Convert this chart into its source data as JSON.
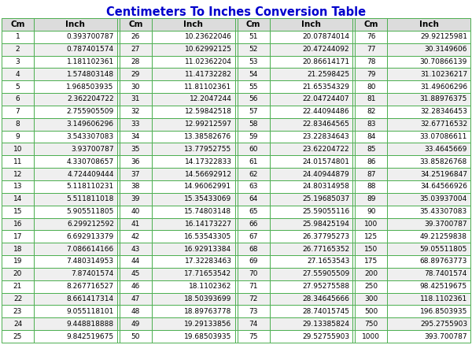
{
  "title": "Centimeters To Inches Conversion Table",
  "title_color": "#0000CC",
  "header_bg": "#DCDCDC",
  "odd_row_bg": "#FFFFFF",
  "even_row_bg": "#EFEFEF",
  "border_color": "#4CAF50",
  "separator_color": "#4CAF50",
  "col1_data": [
    [
      1,
      "0.393700787"
    ],
    [
      2,
      "0.787401574"
    ],
    [
      3,
      "1.181102361"
    ],
    [
      4,
      "1.574803148"
    ],
    [
      5,
      "1.968503935"
    ],
    [
      6,
      "2.362204722"
    ],
    [
      7,
      "2.755905509"
    ],
    [
      8,
      "3.149606296"
    ],
    [
      9,
      "3.543307083"
    ],
    [
      10,
      "3.93700787"
    ],
    [
      11,
      "4.330708657"
    ],
    [
      12,
      "4.724409444"
    ],
    [
      13,
      "5.118110231"
    ],
    [
      14,
      "5.511811018"
    ],
    [
      15,
      "5.905511805"
    ],
    [
      16,
      "6.299212592"
    ],
    [
      17,
      "6.692913379"
    ],
    [
      18,
      "7.086614166"
    ],
    [
      19,
      "7.480314953"
    ],
    [
      20,
      "7.87401574"
    ],
    [
      21,
      "8.267716527"
    ],
    [
      22,
      "8.661417314"
    ],
    [
      23,
      "9.055118101"
    ],
    [
      24,
      "9.448818888"
    ],
    [
      25,
      "9.842519675"
    ]
  ],
  "col2_data": [
    [
      26,
      "10.23622046"
    ],
    [
      27,
      "10.62992125"
    ],
    [
      28,
      "11.02362204"
    ],
    [
      29,
      "11.41732282"
    ],
    [
      30,
      "11.81102361"
    ],
    [
      31,
      "12.2047244"
    ],
    [
      32,
      "12.59842518"
    ],
    [
      33,
      "12.99212597"
    ],
    [
      34,
      "13.38582676"
    ],
    [
      35,
      "13.77952755"
    ],
    [
      36,
      "14.17322833"
    ],
    [
      37,
      "14.56692912"
    ],
    [
      38,
      "14.96062991"
    ],
    [
      39,
      "15.35433069"
    ],
    [
      40,
      "15.74803148"
    ],
    [
      41,
      "16.14173227"
    ],
    [
      42,
      "16.53543305"
    ],
    [
      43,
      "16.92913384"
    ],
    [
      44,
      "17.32283463"
    ],
    [
      45,
      "17.71653542"
    ],
    [
      46,
      "18.1102362"
    ],
    [
      47,
      "18.50393699"
    ],
    [
      48,
      "18.89763778"
    ],
    [
      49,
      "19.29133856"
    ],
    [
      50,
      "19.68503935"
    ]
  ],
  "col3_data": [
    [
      51,
      "20.07874014"
    ],
    [
      52,
      "20.47244092"
    ],
    [
      53,
      "20.86614171"
    ],
    [
      54,
      "21.2598425"
    ],
    [
      55,
      "21.65354329"
    ],
    [
      56,
      "22.04724407"
    ],
    [
      57,
      "22.44094486"
    ],
    [
      58,
      "22.83464565"
    ],
    [
      59,
      "23.22834643"
    ],
    [
      60,
      "23.62204722"
    ],
    [
      61,
      "24.01574801"
    ],
    [
      62,
      "24.40944879"
    ],
    [
      63,
      "24.80314958"
    ],
    [
      64,
      "25.19685037"
    ],
    [
      65,
      "25.59055116"
    ],
    [
      66,
      "25.98425194"
    ],
    [
      67,
      "26.37795273"
    ],
    [
      68,
      "26.77165352"
    ],
    [
      69,
      "27.1653543"
    ],
    [
      70,
      "27.55905509"
    ],
    [
      71,
      "27.95275588"
    ],
    [
      72,
      "28.34645666"
    ],
    [
      73,
      "28.74015745"
    ],
    [
      74,
      "29.13385824"
    ],
    [
      75,
      "29.52755903"
    ]
  ],
  "col4_data": [
    [
      76,
      "29.92125981"
    ],
    [
      77,
      "30.3149606"
    ],
    [
      78,
      "30.70866139"
    ],
    [
      79,
      "31.10236217"
    ],
    [
      80,
      "31.49606296"
    ],
    [
      81,
      "31.88976375"
    ],
    [
      82,
      "32.28346453"
    ],
    [
      83,
      "32.67716532"
    ],
    [
      84,
      "33.07086611"
    ],
    [
      85,
      "33.4645669"
    ],
    [
      86,
      "33.85826768"
    ],
    [
      87,
      "34.25196847"
    ],
    [
      88,
      "34.64566926"
    ],
    [
      89,
      "35.03937004"
    ],
    [
      90,
      "35.43307083"
    ],
    [
      100,
      "39.3700787"
    ],
    [
      125,
      "49.21259838"
    ],
    [
      150,
      "59.05511805"
    ],
    [
      175,
      "68.89763773"
    ],
    [
      200,
      "78.7401574"
    ],
    [
      250,
      "98.42519675"
    ],
    [
      300,
      "118.1102361"
    ],
    [
      500,
      "196.8503935"
    ],
    [
      750,
      "295.2755903"
    ],
    [
      1000,
      "393.700787"
    ]
  ]
}
